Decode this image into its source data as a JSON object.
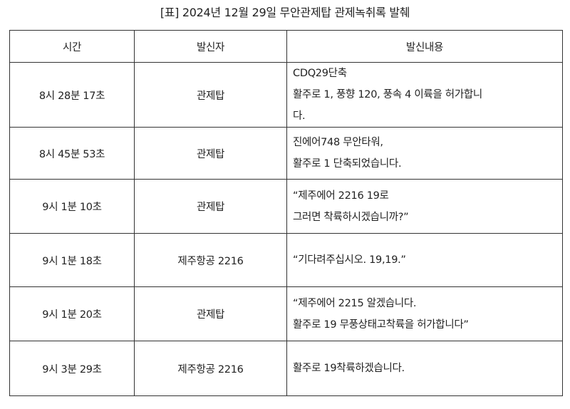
{
  "title": "[표] 2024년 12월 29일 무안관제탑 관제녹취록 발췌",
  "headers": [
    "시간",
    "발신자",
    "발신내용"
  ],
  "rows": [
    {
      "time": "8시 28분 17초",
      "sender": "관제탑",
      "lines": [
        "CDQ29단축",
        "활주로 1, 풍향 120, 풍속 4 이륙을 허가합니",
        "다."
      ]
    },
    {
      "time": "8시 45분 53초",
      "sender": "관제탑",
      "lines": [
        "진에어748 무안타워,",
        "활주로 1 단축되었습니다."
      ]
    },
    {
      "time": "9시 1분 10초",
      "sender": "관제탑",
      "lines": [
        "“제주에어 2216 19로",
        "그러면 착륙하시겠습니까?”"
      ]
    },
    {
      "time": "9시 1분 18초",
      "sender": "제주항공 2216",
      "lines": [
        "“기다려주십시오. 19,19.”"
      ]
    },
    {
      "time": "9시 1분 20초",
      "sender": "관제탑",
      "lines": [
        "“제주에어 2215 알겠습니다.",
        "활주로 19 무풍상태고착륙을 허가합니다”"
      ]
    },
    {
      "time": "9시 3분 29초",
      "sender": "제주항공 2216",
      "lines": [
        "활주로 19착륙하겠습니다."
      ]
    }
  ]
}
